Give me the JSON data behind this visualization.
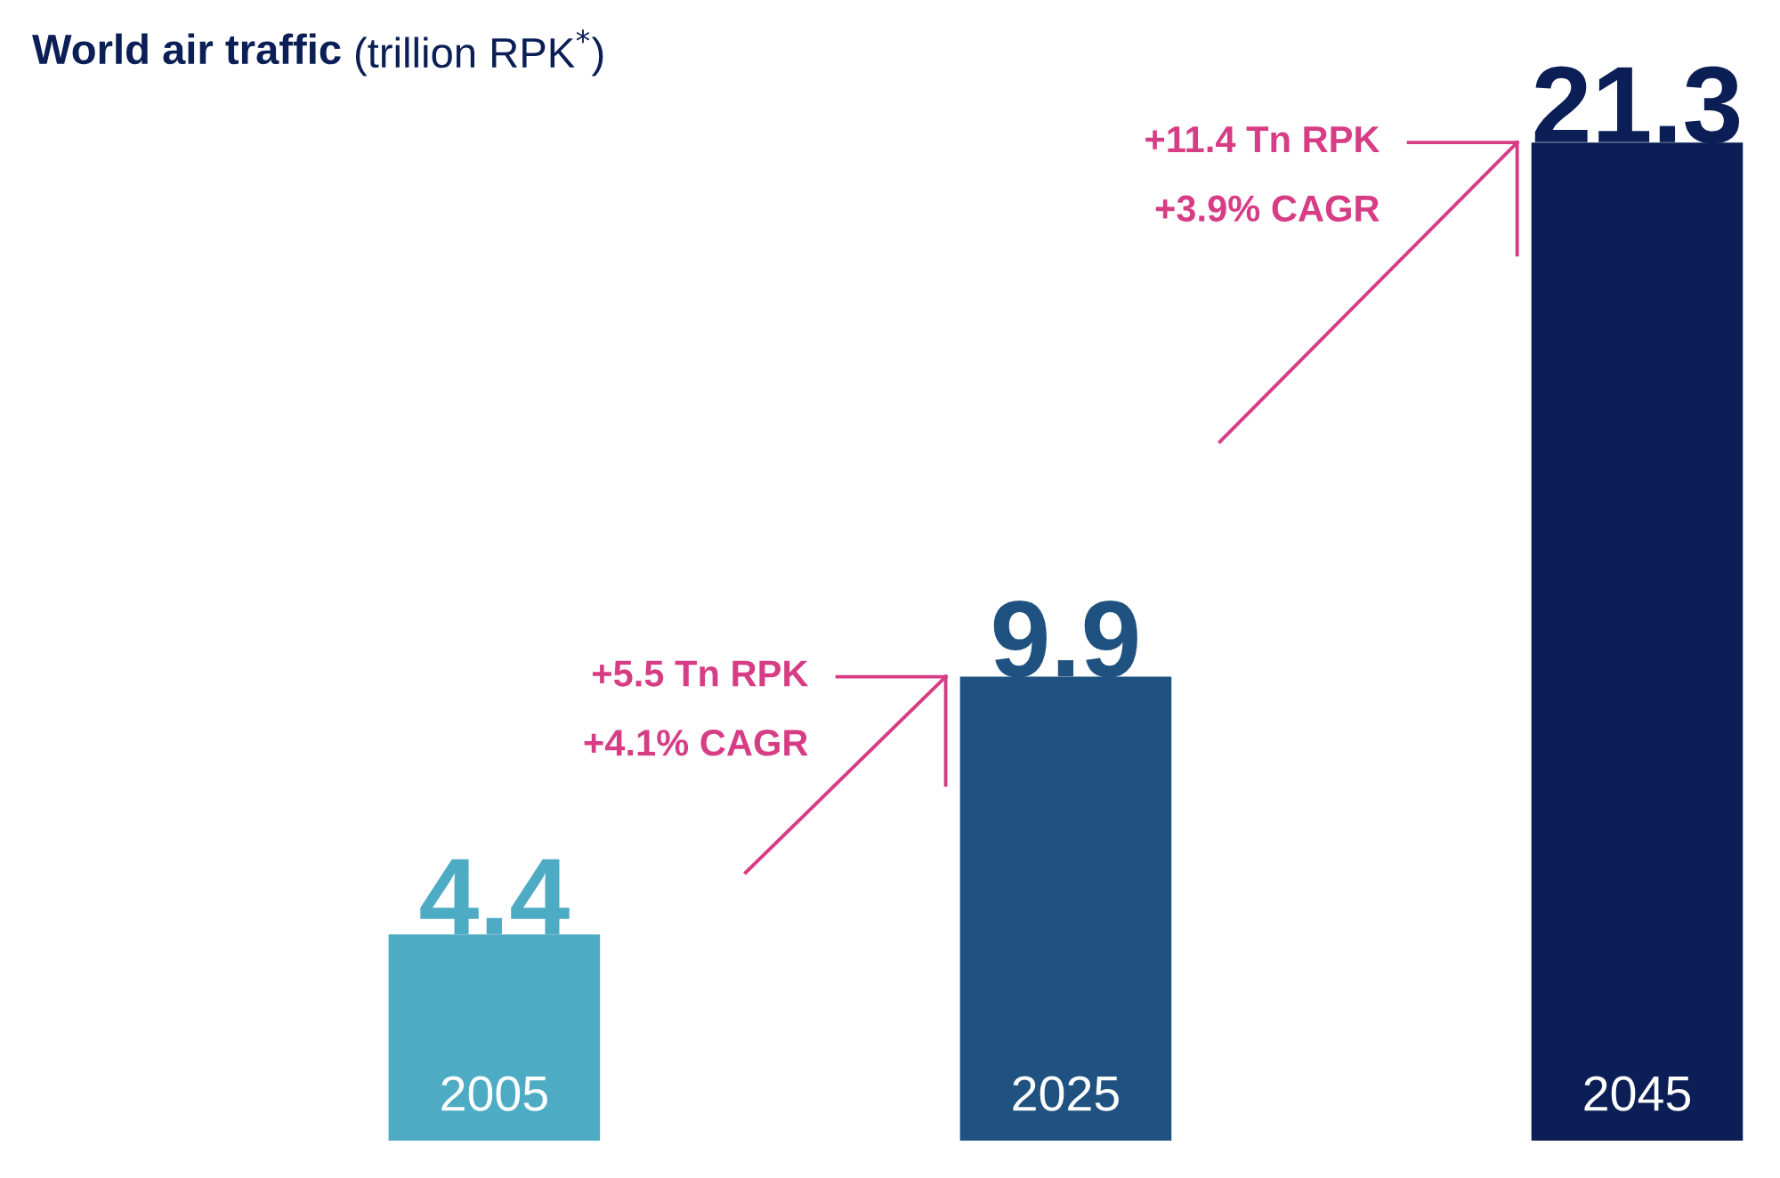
{
  "chart_data": {
    "type": "bar",
    "title": "World air traffic",
    "subtitle": "(trillion RPK$^{*}$)",
    "categories": [
      "2005",
      "2025",
      "2045"
    ],
    "values": [
      4.4,
      9.9,
      21.3
    ],
    "colors": [
      "#4dabc4",
      "#1f5280",
      "#0b1f56"
    ],
    "data_labels": true,
    "annotations": [
      "+5.5 Tn RPK",
      "+4.1% CAGR",
      "+11.4 Tn RPK",
      "+3.9% CAGR"
    ],
    "legend": false
  }
}
